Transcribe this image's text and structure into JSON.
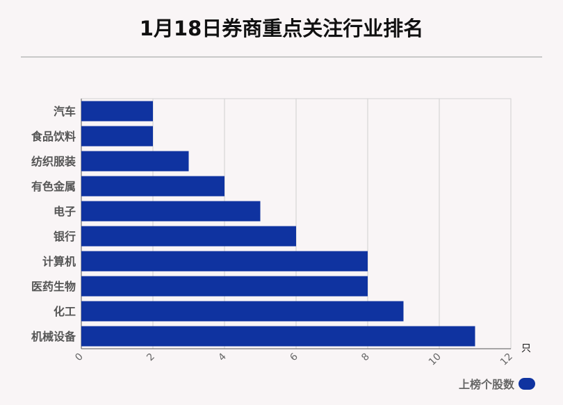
{
  "title": "1月18日券商重点关注行业排名",
  "chart_data": {
    "type": "bar",
    "orientation": "horizontal",
    "title": "1月18日券商重点关注行业排名",
    "categories": [
      "汽车",
      "食品饮料",
      "纺织服装",
      "有色金属",
      "电子",
      "银行",
      "计算机",
      "医药生物",
      "化工",
      "机械设备"
    ],
    "series": [
      {
        "name": "上榜个股数",
        "values": [
          2,
          2,
          3,
          4,
          5,
          6,
          8,
          8,
          9,
          11
        ],
        "color": "#0f33a0"
      }
    ],
    "xlim": [
      0,
      12
    ],
    "xticks": [
      "0",
      "2",
      "4",
      "6",
      "8",
      "10",
      "12"
    ],
    "x_unit": "只",
    "grid": true,
    "legend_position": "bottom-right"
  },
  "legend": {
    "label": "上榜个股数",
    "color": "#0f33a0"
  }
}
